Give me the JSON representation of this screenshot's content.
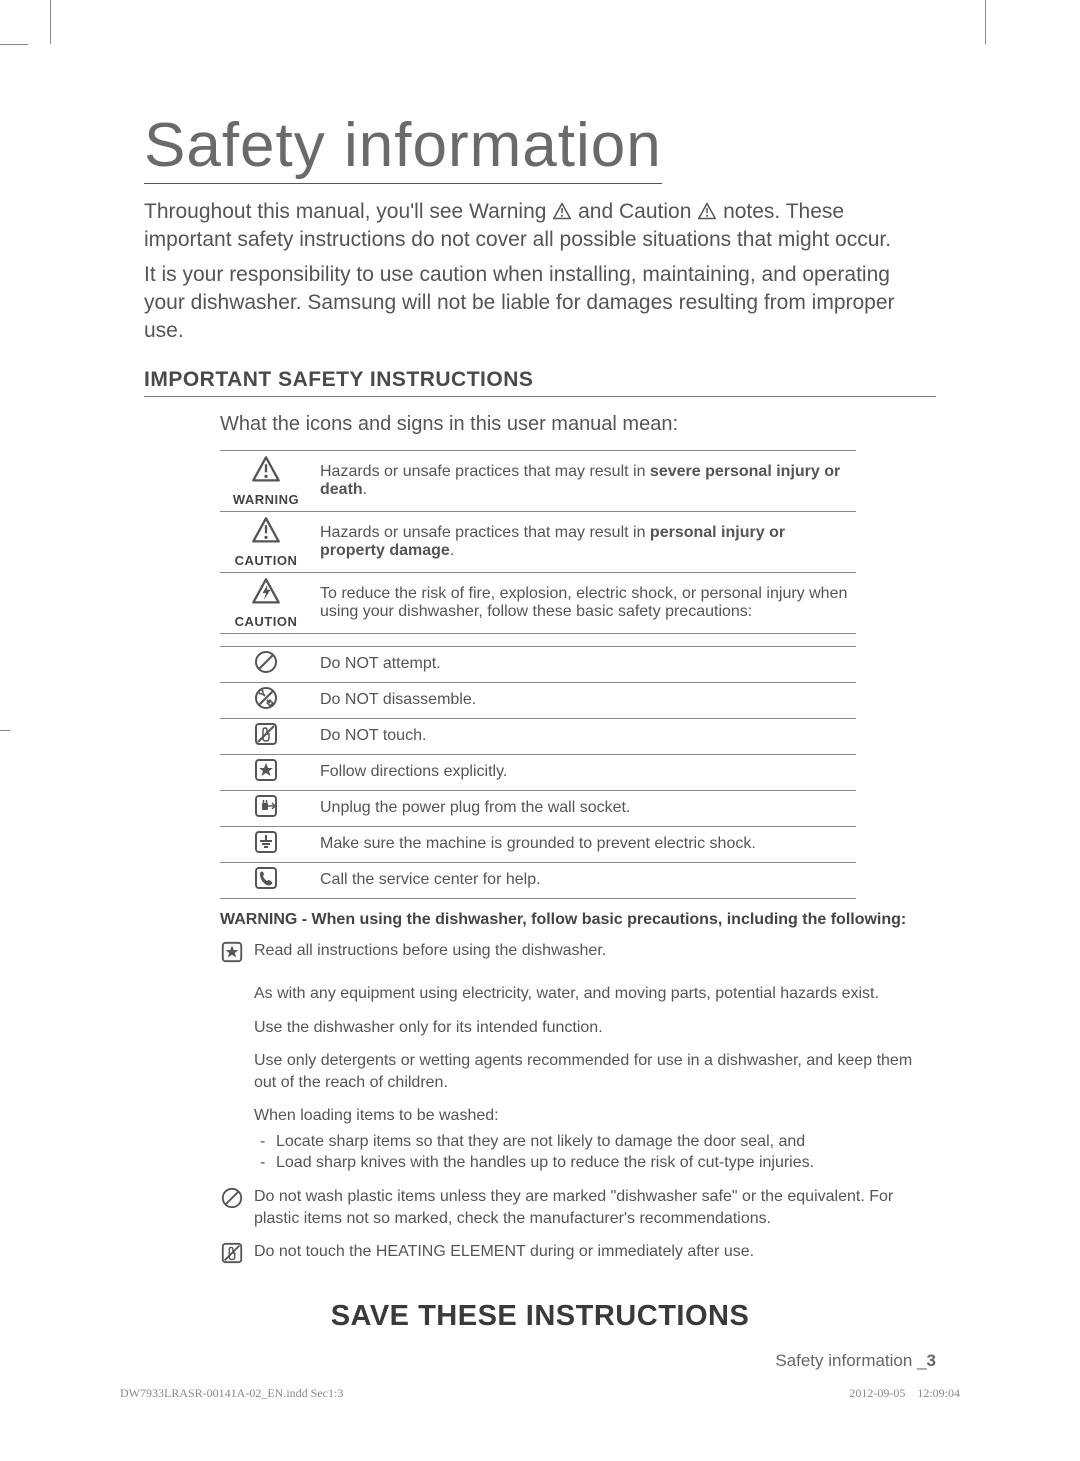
{
  "title": "Safety information",
  "intro": {
    "line1_a": "Throughout this manual, you'll see Warning ",
    "line1_b": " and Caution ",
    "line1_c": " notes. These important safety instructions do not cover all possible situations that might occur.",
    "line2": "It is your responsibility to use caution when installing, maintaining, and operating your dishwasher. Samsung will not be liable for damages resulting from improper use."
  },
  "section_heading": "IMPORTANT SAFETY INSTRUCTIONS",
  "subintro": "What the icons and signs in this user manual mean:",
  "hazard_rows": [
    {
      "icon": "warning-triangle",
      "label": "WARNING",
      "text_a": "Hazards or unsafe practices that may result in ",
      "bold": "severe personal injury or death",
      "text_b": "."
    },
    {
      "icon": "warning-triangle",
      "label": "CAUTION",
      "text_a": "Hazards or unsafe practices that may result in ",
      "bold": "personal injury or property damage",
      "text_b": "."
    },
    {
      "icon": "caution-spark",
      "label": "CAUTION",
      "text_a": "To reduce the risk of fire, explosion, electric shock, or personal injury when using your dishwasher, follow these basic safety precautions:",
      "bold": "",
      "text_b": ""
    }
  ],
  "symbol_rows": [
    {
      "icon": "no-attempt",
      "text": "Do NOT attempt."
    },
    {
      "icon": "no-disassemble",
      "text": "Do NOT disassemble."
    },
    {
      "icon": "no-touch",
      "text": "Do NOT touch."
    },
    {
      "icon": "star-box",
      "text": "Follow directions explicitly."
    },
    {
      "icon": "unplug-box",
      "text": "Unplug the power plug from the wall socket."
    },
    {
      "icon": "ground-box",
      "text": "Make sure the machine is grounded to prevent electric shock."
    },
    {
      "icon": "phone-box",
      "text": "Call the service center for help."
    }
  ],
  "warning_follow": "WARNING - When using the dishwasher, follow basic precautions, including the following:",
  "precautions": [
    {
      "icon": "star-box",
      "text": "Read all instructions before using the dishwasher."
    },
    {
      "icon": "",
      "text": "As with any equipment using electricity, water, and moving parts, potential hazards exist."
    },
    {
      "icon": "",
      "text": "Use the dishwasher only for its intended function."
    },
    {
      "icon": "",
      "text": "Use only detergents or wetting agents recommended for use in a dishwasher, and keep them out of the reach of children."
    },
    {
      "icon": "",
      "text": "When loading items to be washed:",
      "sub": [
        "Locate sharp items so that they are not likely to damage the door seal, and",
        "Load sharp knives with the handles up to reduce the risk of cut-type injuries."
      ]
    },
    {
      "icon": "no-attempt",
      "text": "Do not wash plastic items unless they are marked \"dishwasher safe\" or the equivalent. For plastic items not so marked, check the manufacturer's recommendations."
    },
    {
      "icon": "no-touch",
      "text": "Do not touch the HEATING ELEMENT during or immediately after use."
    }
  ],
  "save": "SAVE THESE INSTRUCTIONS",
  "footer_label": "Safety information _",
  "page_number": "3",
  "print_file": "DW7933LRASR-00141A-02_EN.indd   Sec1:3",
  "print_date": "2012-09-05",
  "print_time": "12:09:04",
  "colors": {
    "text": "#4a4a4a",
    "rule": "#777777",
    "icon": "#555555"
  }
}
